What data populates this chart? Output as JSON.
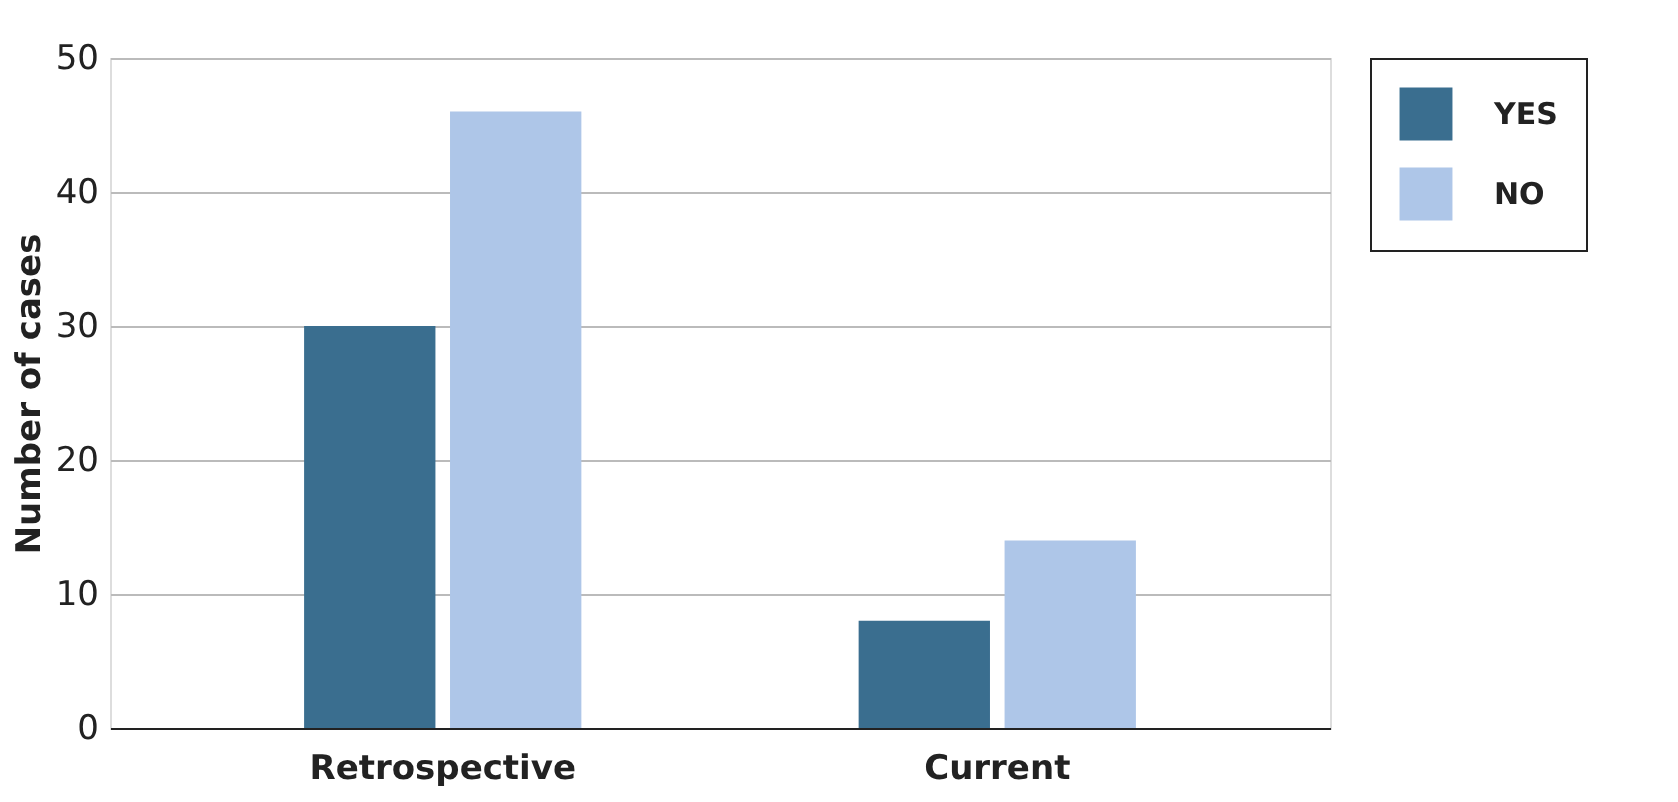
{
  "chart_data": {
    "type": "bar",
    "ylabel": "Number of cases",
    "categories": [
      "Retrospective",
      "Current"
    ],
    "series": [
      {
        "name": "YES",
        "color": "#3a6e8f",
        "values": [
          30,
          8
        ]
      },
      {
        "name": "NO",
        "color": "#aec6e8",
        "values": [
          46,
          14
        ]
      }
    ],
    "ylim": [
      0,
      50
    ],
    "yticks": [
      0,
      10,
      20,
      30,
      40,
      50
    ],
    "grid": "y",
    "legend": "top right"
  }
}
